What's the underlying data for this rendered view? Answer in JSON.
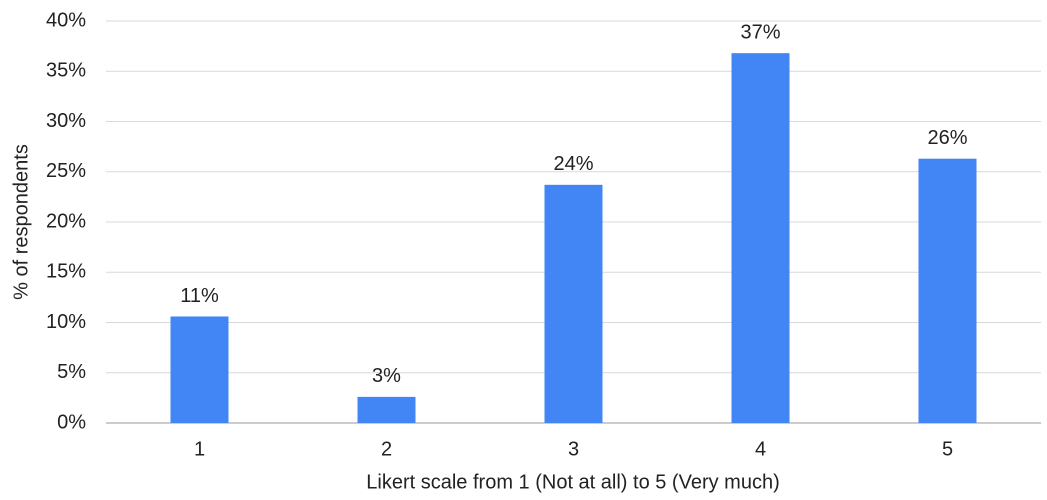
{
  "chart_data": {
    "type": "bar",
    "x_label": "Likert scale from 1 (Not at all) to 5 (Very much)",
    "y_label": "% of respondents",
    "categories": [
      "1",
      "2",
      "3",
      "4",
      "5"
    ],
    "values": [
      10.6,
      2.6,
      23.7,
      36.8,
      26.3
    ],
    "value_labels": [
      "11%",
      "3%",
      "24%",
      "37%",
      "26%"
    ],
    "color": "#4285f4",
    "ylim": [
      0,
      40
    ],
    "yticks": [
      {
        "value": 0,
        "label": "0%"
      },
      {
        "value": 5,
        "label": "5%"
      },
      {
        "value": 10,
        "label": "10%"
      },
      {
        "value": 15,
        "label": "15%"
      },
      {
        "value": 20,
        "label": "20%"
      },
      {
        "value": 25,
        "label": "25%"
      },
      {
        "value": 30,
        "label": "30%"
      },
      {
        "value": 35,
        "label": "35%"
      },
      {
        "value": 40,
        "label": "40%"
      }
    ],
    "grid": true
  }
}
